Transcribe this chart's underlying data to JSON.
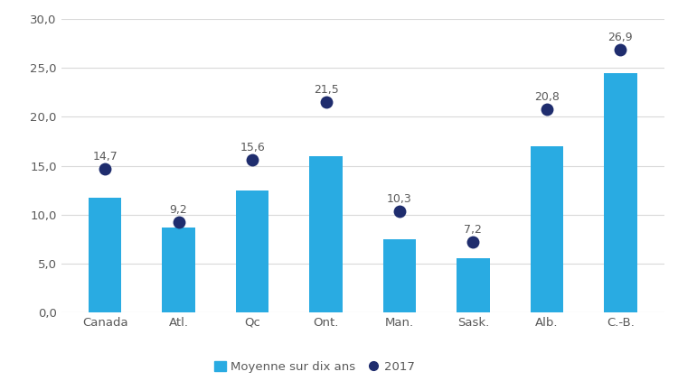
{
  "categories": [
    "Canada",
    "Atl.",
    "Qc",
    "Ont.",
    "Man.",
    "Sask.",
    "Alb.",
    "C.-B."
  ],
  "bar_values": [
    11.7,
    8.7,
    12.5,
    16.0,
    7.5,
    5.5,
    17.0,
    24.5
  ],
  "dot_values": [
    14.7,
    9.2,
    15.6,
    21.5,
    10.3,
    7.2,
    20.8,
    26.9
  ],
  "dot_labels": [
    "14,7",
    "9,2",
    "15,6",
    "21,5",
    "10,3",
    "7,2",
    "20,8",
    "26,9"
  ],
  "bar_color": "#29ABE2",
  "dot_color": "#1F2D6E",
  "ylim": [
    0,
    30
  ],
  "yticks": [
    0.0,
    5.0,
    10.0,
    15.0,
    20.0,
    25.0,
    30.0
  ],
  "ytick_labels": [
    "0,0",
    "5,0",
    "10,0",
    "15,0",
    "20,0",
    "25,0",
    "30,0"
  ],
  "legend_bar_label": "Moyenne sur dix ans",
  "legend_dot_label": "2017",
  "background_color": "#ffffff",
  "bar_width": 0.45,
  "dot_size": 100,
  "label_fontsize": 9.0,
  "tick_fontsize": 9.5,
  "legend_fontsize": 9.5,
  "grid_color": "#d9d9d9",
  "text_color": "#595959"
}
